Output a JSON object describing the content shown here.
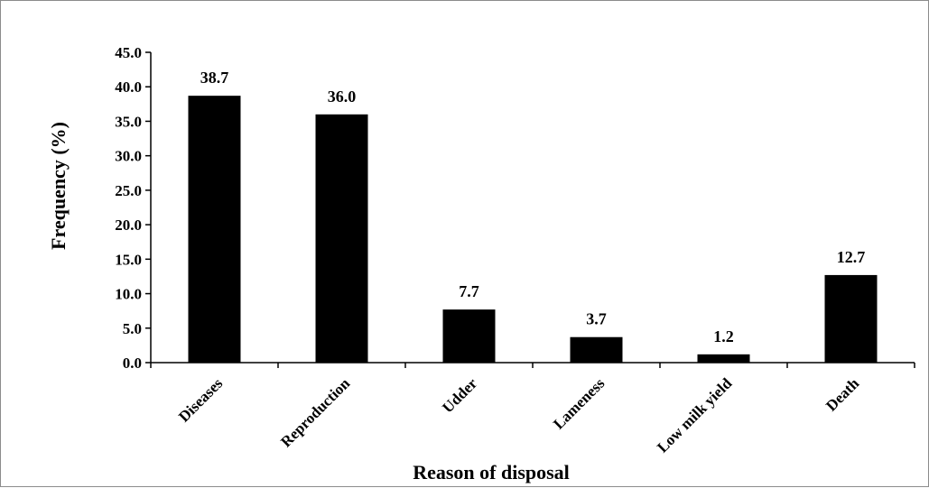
{
  "chart_data": {
    "type": "bar",
    "categories": [
      "Diseases",
      "Reproduction",
      "Udder",
      "Lameness",
      "Low milk yield",
      "Death"
    ],
    "values": [
      38.7,
      36.0,
      7.7,
      3.7,
      1.2,
      12.7
    ],
    "data_labels": [
      "38.7",
      "36.0",
      "7.7",
      "3.7",
      "1.2",
      "12.7"
    ],
    "title": "",
    "xlabel": "Reason of disposal",
    "ylabel": "Frequency (%)",
    "ylim": [
      0,
      45
    ],
    "yticks": [
      0,
      5,
      10,
      15,
      20,
      25,
      30,
      35,
      40,
      45
    ],
    "ytick_labels": [
      "0.0",
      "5.0",
      "10.0",
      "15.0",
      "20.0",
      "25.0",
      "30.0",
      "35.0",
      "40.0",
      "45.0"
    ],
    "grid": false,
    "legend": "none",
    "bar_color": "#000000"
  }
}
